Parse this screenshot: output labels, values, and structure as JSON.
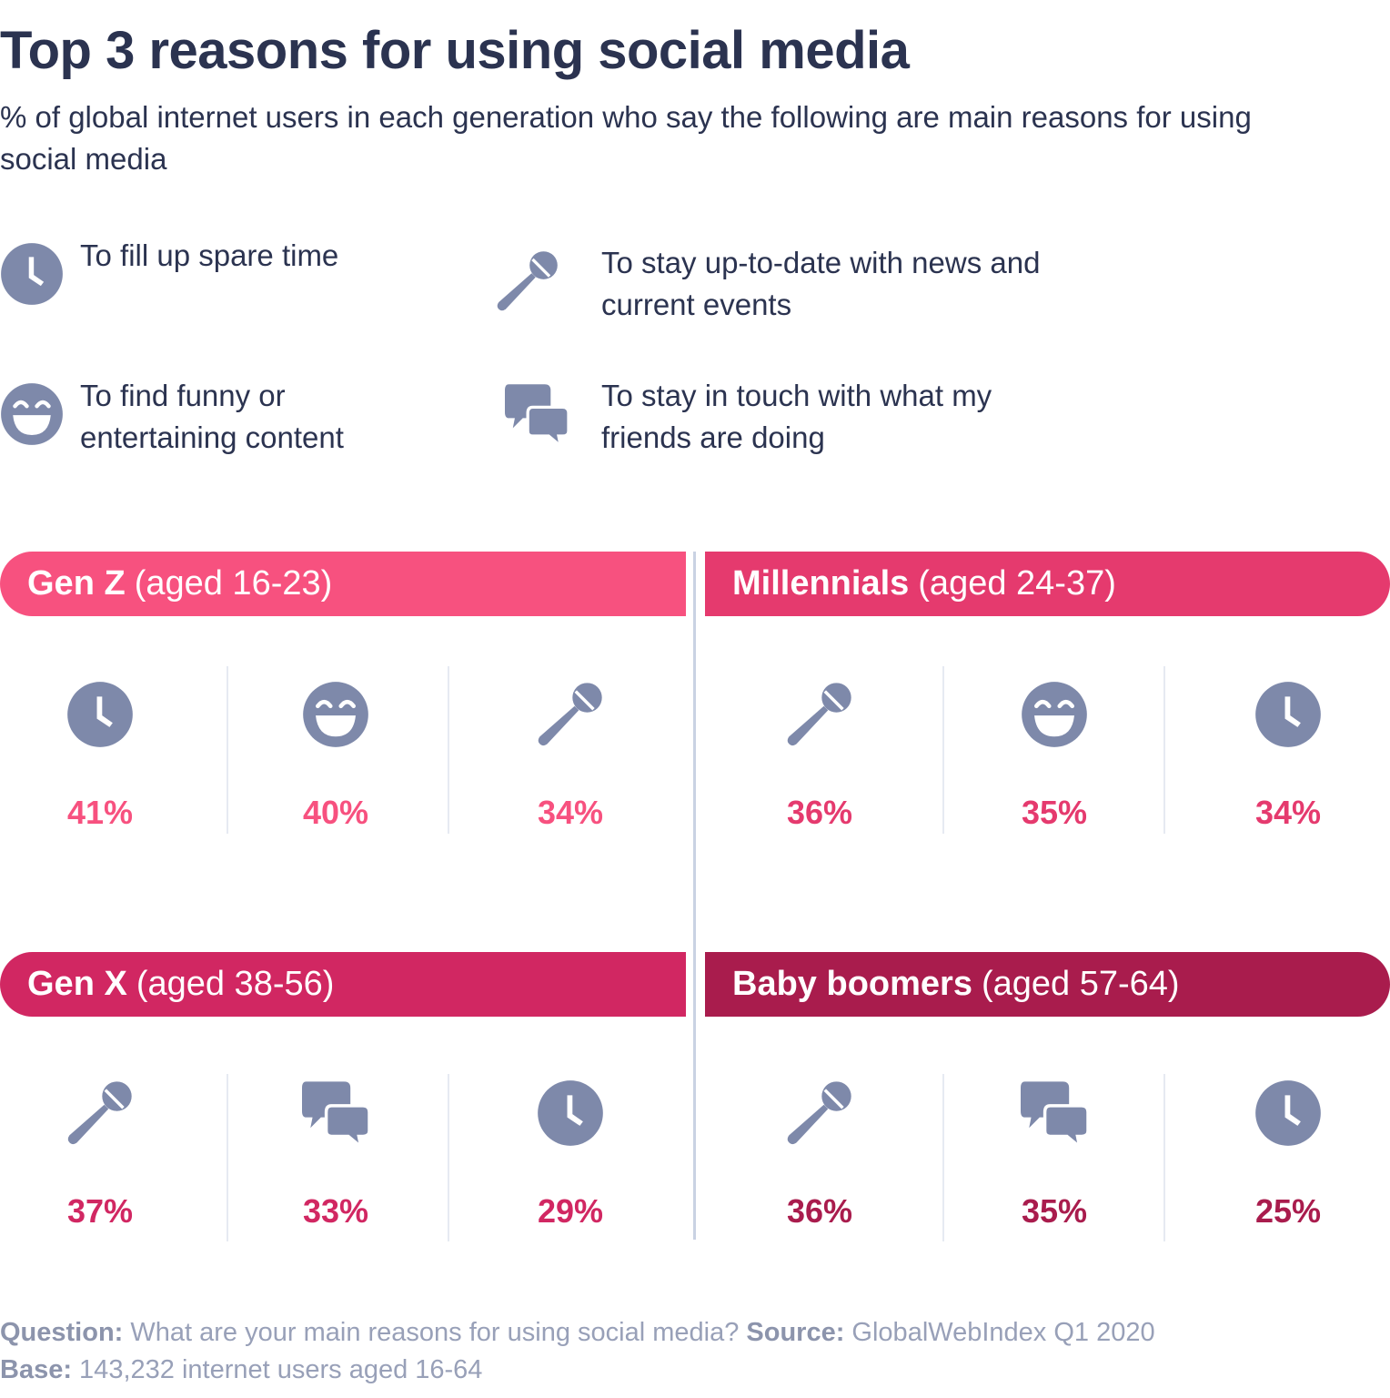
{
  "chart_data": {
    "type": "table",
    "title": "Top 3 reasons for using social media",
    "subtitle": "% of global internet users in each generation who say the following are main reasons for using social media",
    "legend": [
      {
        "icon": "clock-icon",
        "label": "To fill up spare time"
      },
      {
        "icon": "microphone-icon",
        "label": "To stay up-to-date with news and current events"
      },
      {
        "icon": "laughing-face-icon",
        "label": "To find funny or entertaining content"
      },
      {
        "icon": "chat-bubbles-icon",
        "label": "To stay in touch with what my friends are doing"
      }
    ],
    "groups": [
      {
        "name": "Gen Z",
        "age": "(aged 16-23)",
        "color": "#f7517f",
        "items": [
          {
            "icon": "clock-icon",
            "value": "41%"
          },
          {
            "icon": "laughing-face-icon",
            "value": "40%"
          },
          {
            "icon": "microphone-icon",
            "value": "34%"
          }
        ]
      },
      {
        "name": "Millennials",
        "age": "(aged 24-37)",
        "color": "#e53a6e",
        "items": [
          {
            "icon": "microphone-icon",
            "value": "36%"
          },
          {
            "icon": "laughing-face-icon",
            "value": "35%"
          },
          {
            "icon": "clock-icon",
            "value": "34%"
          }
        ]
      },
      {
        "name": "Gen X",
        "age": "(aged 38-56)",
        "color": "#d12762",
        "items": [
          {
            "icon": "microphone-icon",
            "value": "37%"
          },
          {
            "icon": "chat-bubbles-icon",
            "value": "33%"
          },
          {
            "icon": "clock-icon",
            "value": "29%"
          }
        ]
      },
      {
        "name": "Baby boomers",
        "age": "(aged 57-64)",
        "color": "#a91c4d",
        "items": [
          {
            "icon": "microphone-icon",
            "value": "36%"
          },
          {
            "icon": "chat-bubbles-icon",
            "value": "35%"
          },
          {
            "icon": "clock-icon",
            "value": "25%"
          }
        ]
      }
    ]
  },
  "colors": {
    "icon": "#7e89aa",
    "text": "#2b3350",
    "footer": "#98a0b8"
  },
  "footer": {
    "question_label": "Question:",
    "question_text": " What are your main reasons for using social media? ",
    "source_label": "Source:",
    "source_text": " GlobalWebIndex Q1 2020",
    "base_label": "Base:",
    "base_text": " 143,232 internet users aged 16-64"
  }
}
